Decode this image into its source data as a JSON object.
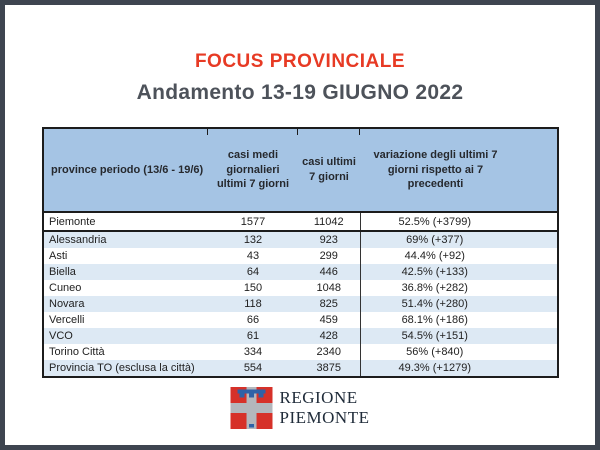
{
  "slide": {
    "title": "FOCUS PROVINCIALE",
    "subtitle": "Andamento 13-19 GIUGNO 2022"
  },
  "table": {
    "headers": [
      "province periodo (13/6 - 19/6)",
      "casi medi giornalieri ultimi 7 giorni",
      "casi ultimi 7 giorni",
      "variazione degli ultimi 7 giorni rispetto ai 7 precedenti"
    ],
    "rows": [
      {
        "province": "Piemonte",
        "casi_medi": "1577",
        "casi_7gg": "11042",
        "variazione": "52.5% (+3799)",
        "is_total": true
      },
      {
        "province": "Alessandria",
        "casi_medi": "132",
        "casi_7gg": "923",
        "variazione": "69% (+377)"
      },
      {
        "province": "Asti",
        "casi_medi": "43",
        "casi_7gg": "299",
        "variazione": "44.4% (+92)"
      },
      {
        "province": "Biella",
        "casi_medi": "64",
        "casi_7gg": "446",
        "variazione": "42.5% (+133)"
      },
      {
        "province": "Cuneo",
        "casi_medi": "150",
        "casi_7gg": "1048",
        "variazione": "36.8% (+282)"
      },
      {
        "province": "Novara",
        "casi_medi": "118",
        "casi_7gg": "825",
        "variazione": "51.4% (+280)"
      },
      {
        "province": "Vercelli",
        "casi_medi": "66",
        "casi_7gg": "459",
        "variazione": "68.1% (+186)"
      },
      {
        "province": "VCO",
        "casi_medi": "61",
        "casi_7gg": "428",
        "variazione": "54.5% (+151)"
      },
      {
        "province": "Torino Città",
        "casi_medi": "334",
        "casi_7gg": "2340",
        "variazione": "56% (+840)"
      },
      {
        "province": "Provincia TO (esclusa la città)",
        "casi_medi": "554",
        "casi_7gg": "3875",
        "variazione": "49.3% (+1279)"
      }
    ]
  },
  "logo": {
    "org_line1": "REGIONE",
    "org_line2": "PIEMONTE",
    "emblem": "piemonte-coat-of-arms"
  },
  "colors": {
    "title_red": "#e73a24",
    "subtitle_gray": "#4d525a",
    "header_blue": "#a5c4e4",
    "stripe_blue": "#dde9f4",
    "frame_gray": "#3e4550",
    "table_border": "#1c1c1c",
    "logo_red": "#d63129",
    "logo_silver": "#b3b7bc",
    "logo_blue": "#2e62a8"
  },
  "chart_data": {
    "type": "table",
    "title": "FOCUS PROVINCIALE — Andamento 13-19 GIUGNO 2022",
    "columns": [
      "province periodo (13/6 - 19/6)",
      "casi medi giornalieri ultimi 7 giorni",
      "casi ultimi 7 giorni",
      "variazione degli ultimi 7 giorni rispetto ai 7 precedenti"
    ],
    "rows": [
      [
        "Piemonte",
        1577,
        11042,
        "52.5% (+3799)"
      ],
      [
        "Alessandria",
        132,
        923,
        "69% (+377)"
      ],
      [
        "Asti",
        43,
        299,
        "44.4% (+92)"
      ],
      [
        "Biella",
        64,
        446,
        "42.5% (+133)"
      ],
      [
        "Cuneo",
        150,
        1048,
        "36.8% (+282)"
      ],
      [
        "Novara",
        118,
        825,
        "51.4% (+280)"
      ],
      [
        "Vercelli",
        66,
        459,
        "68.1% (+186)"
      ],
      [
        "VCO",
        61,
        428,
        "54.5% (+151)"
      ],
      [
        "Torino Città",
        334,
        2340,
        "56% (+840)"
      ],
      [
        "Provincia TO (esclusa la città)",
        554,
        3875,
        "49.3% (+1279)"
      ]
    ]
  }
}
